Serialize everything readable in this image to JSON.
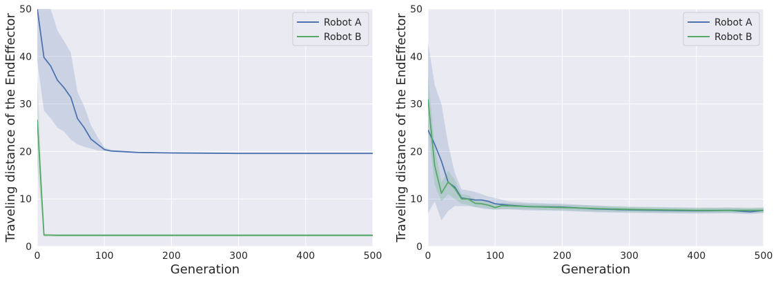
{
  "chart_data": [
    {
      "type": "line",
      "title": "",
      "xlabel": "Generation",
      "ylabel": "Traveling distance of the EndEffector",
      "xlim": [
        0,
        500
      ],
      "ylim": [
        0,
        50
      ],
      "xticks": [
        0,
        100,
        200,
        300,
        400,
        500
      ],
      "yticks": [
        0,
        10,
        20,
        30,
        40,
        50
      ],
      "grid": true,
      "legend": "top-right",
      "series": [
        {
          "name": "Robot A",
          "color": "#4c72b0",
          "x": [
            0,
            10,
            20,
            30,
            40,
            50,
            60,
            70,
            80,
            90,
            100,
            110,
            150,
            200,
            300,
            400,
            500
          ],
          "y": [
            50,
            39.8,
            38,
            35,
            33.4,
            31.4,
            26.9,
            25,
            22.6,
            21.5,
            20.4,
            20.1,
            19.8,
            19.7,
            19.6,
            19.6,
            19.6
          ],
          "lower": [
            39,
            28.6,
            27,
            25,
            24.2,
            22.5,
            21.5,
            21,
            20.6,
            20.2,
            20.1,
            20,
            19.7,
            19.6,
            19.5,
            19.5,
            19.5
          ],
          "upper": [
            50,
            50,
            50,
            45.5,
            43.2,
            40.8,
            32.5,
            29.5,
            25.5,
            23,
            20.9,
            20.3,
            19.9,
            19.8,
            19.7,
            19.7,
            19.7
          ]
        },
        {
          "name": "Robot B",
          "color": "#55a868",
          "x": [
            0,
            10,
            20,
            30,
            50,
            100,
            200,
            300,
            400,
            500
          ],
          "y": [
            26.7,
            2.4,
            2.4,
            2.35,
            2.35,
            2.35,
            2.35,
            2.35,
            2.35,
            2.35
          ],
          "lower": [
            17,
            2.1,
            2.1,
            2.1,
            2.1,
            2.1,
            2.1,
            2.1,
            2.1,
            2.1
          ],
          "upper": [
            36,
            2.7,
            2.6,
            2.6,
            2.6,
            2.6,
            2.6,
            2.6,
            2.6,
            2.6
          ]
        }
      ]
    },
    {
      "type": "line",
      "title": "",
      "xlabel": "Generation",
      "ylabel": "Traveling distance of the EndEffector",
      "xlim": [
        0,
        500
      ],
      "ylim": [
        0,
        50
      ],
      "xticks": [
        0,
        100,
        200,
        300,
        400,
        500
      ],
      "yticks": [
        0,
        10,
        20,
        30,
        40,
        50
      ],
      "grid": true,
      "legend": "top-right",
      "series": [
        {
          "name": "Robot A",
          "color": "#4c72b0",
          "x": [
            0,
            10,
            20,
            30,
            40,
            50,
            60,
            70,
            80,
            90,
            100,
            120,
            150,
            200,
            250,
            300,
            350,
            400,
            450,
            480,
            500
          ],
          "y": [
            24.5,
            21.5,
            18,
            13.5,
            12.5,
            10.2,
            10,
            9.8,
            9.8,
            9.5,
            9,
            8.7,
            8.4,
            8.3,
            7.9,
            7.7,
            7.6,
            7.5,
            7.6,
            7.3,
            7.6
          ],
          "lower": [
            7,
            9.5,
            5.5,
            7.5,
            8.5,
            8.5,
            8.5,
            8.3,
            8,
            7.8,
            7.8,
            7.8,
            7.6,
            7.5,
            7.2,
            7.1,
            7,
            6.9,
            7,
            6.8,
            7
          ],
          "upper": [
            43,
            34,
            30,
            21.5,
            15.5,
            12,
            11.8,
            11.5,
            11,
            10.5,
            10.2,
            9.5,
            9.2,
            9,
            8.6,
            8.3,
            8.2,
            8.1,
            8.2,
            8,
            8.2
          ]
        },
        {
          "name": "Robot B",
          "color": "#55a868",
          "x": [
            0,
            10,
            20,
            30,
            40,
            50,
            60,
            70,
            80,
            90,
            100,
            110,
            150,
            200,
            250,
            300,
            350,
            400,
            450,
            500
          ],
          "y": [
            31,
            17,
            11.2,
            13.6,
            12.2,
            10,
            10,
            9.1,
            9,
            8.7,
            8.2,
            8.6,
            8.4,
            8.2,
            8,
            7.8,
            7.7,
            7.6,
            7.6,
            7.6
          ],
          "lower": [
            25,
            13,
            9.5,
            11,
            10,
            9,
            8.8,
            8.3,
            8.2,
            8,
            7.7,
            7.9,
            7.8,
            7.6,
            7.4,
            7.2,
            7.1,
            7.1,
            7.1,
            7.1
          ],
          "upper": [
            36,
            21,
            13.5,
            16,
            14,
            11,
            10.8,
            10,
            9.8,
            9.4,
            8.8,
            9.2,
            9,
            8.8,
            8.6,
            8.4,
            8.3,
            8.2,
            8.2,
            8.2
          ]
        }
      ]
    }
  ]
}
